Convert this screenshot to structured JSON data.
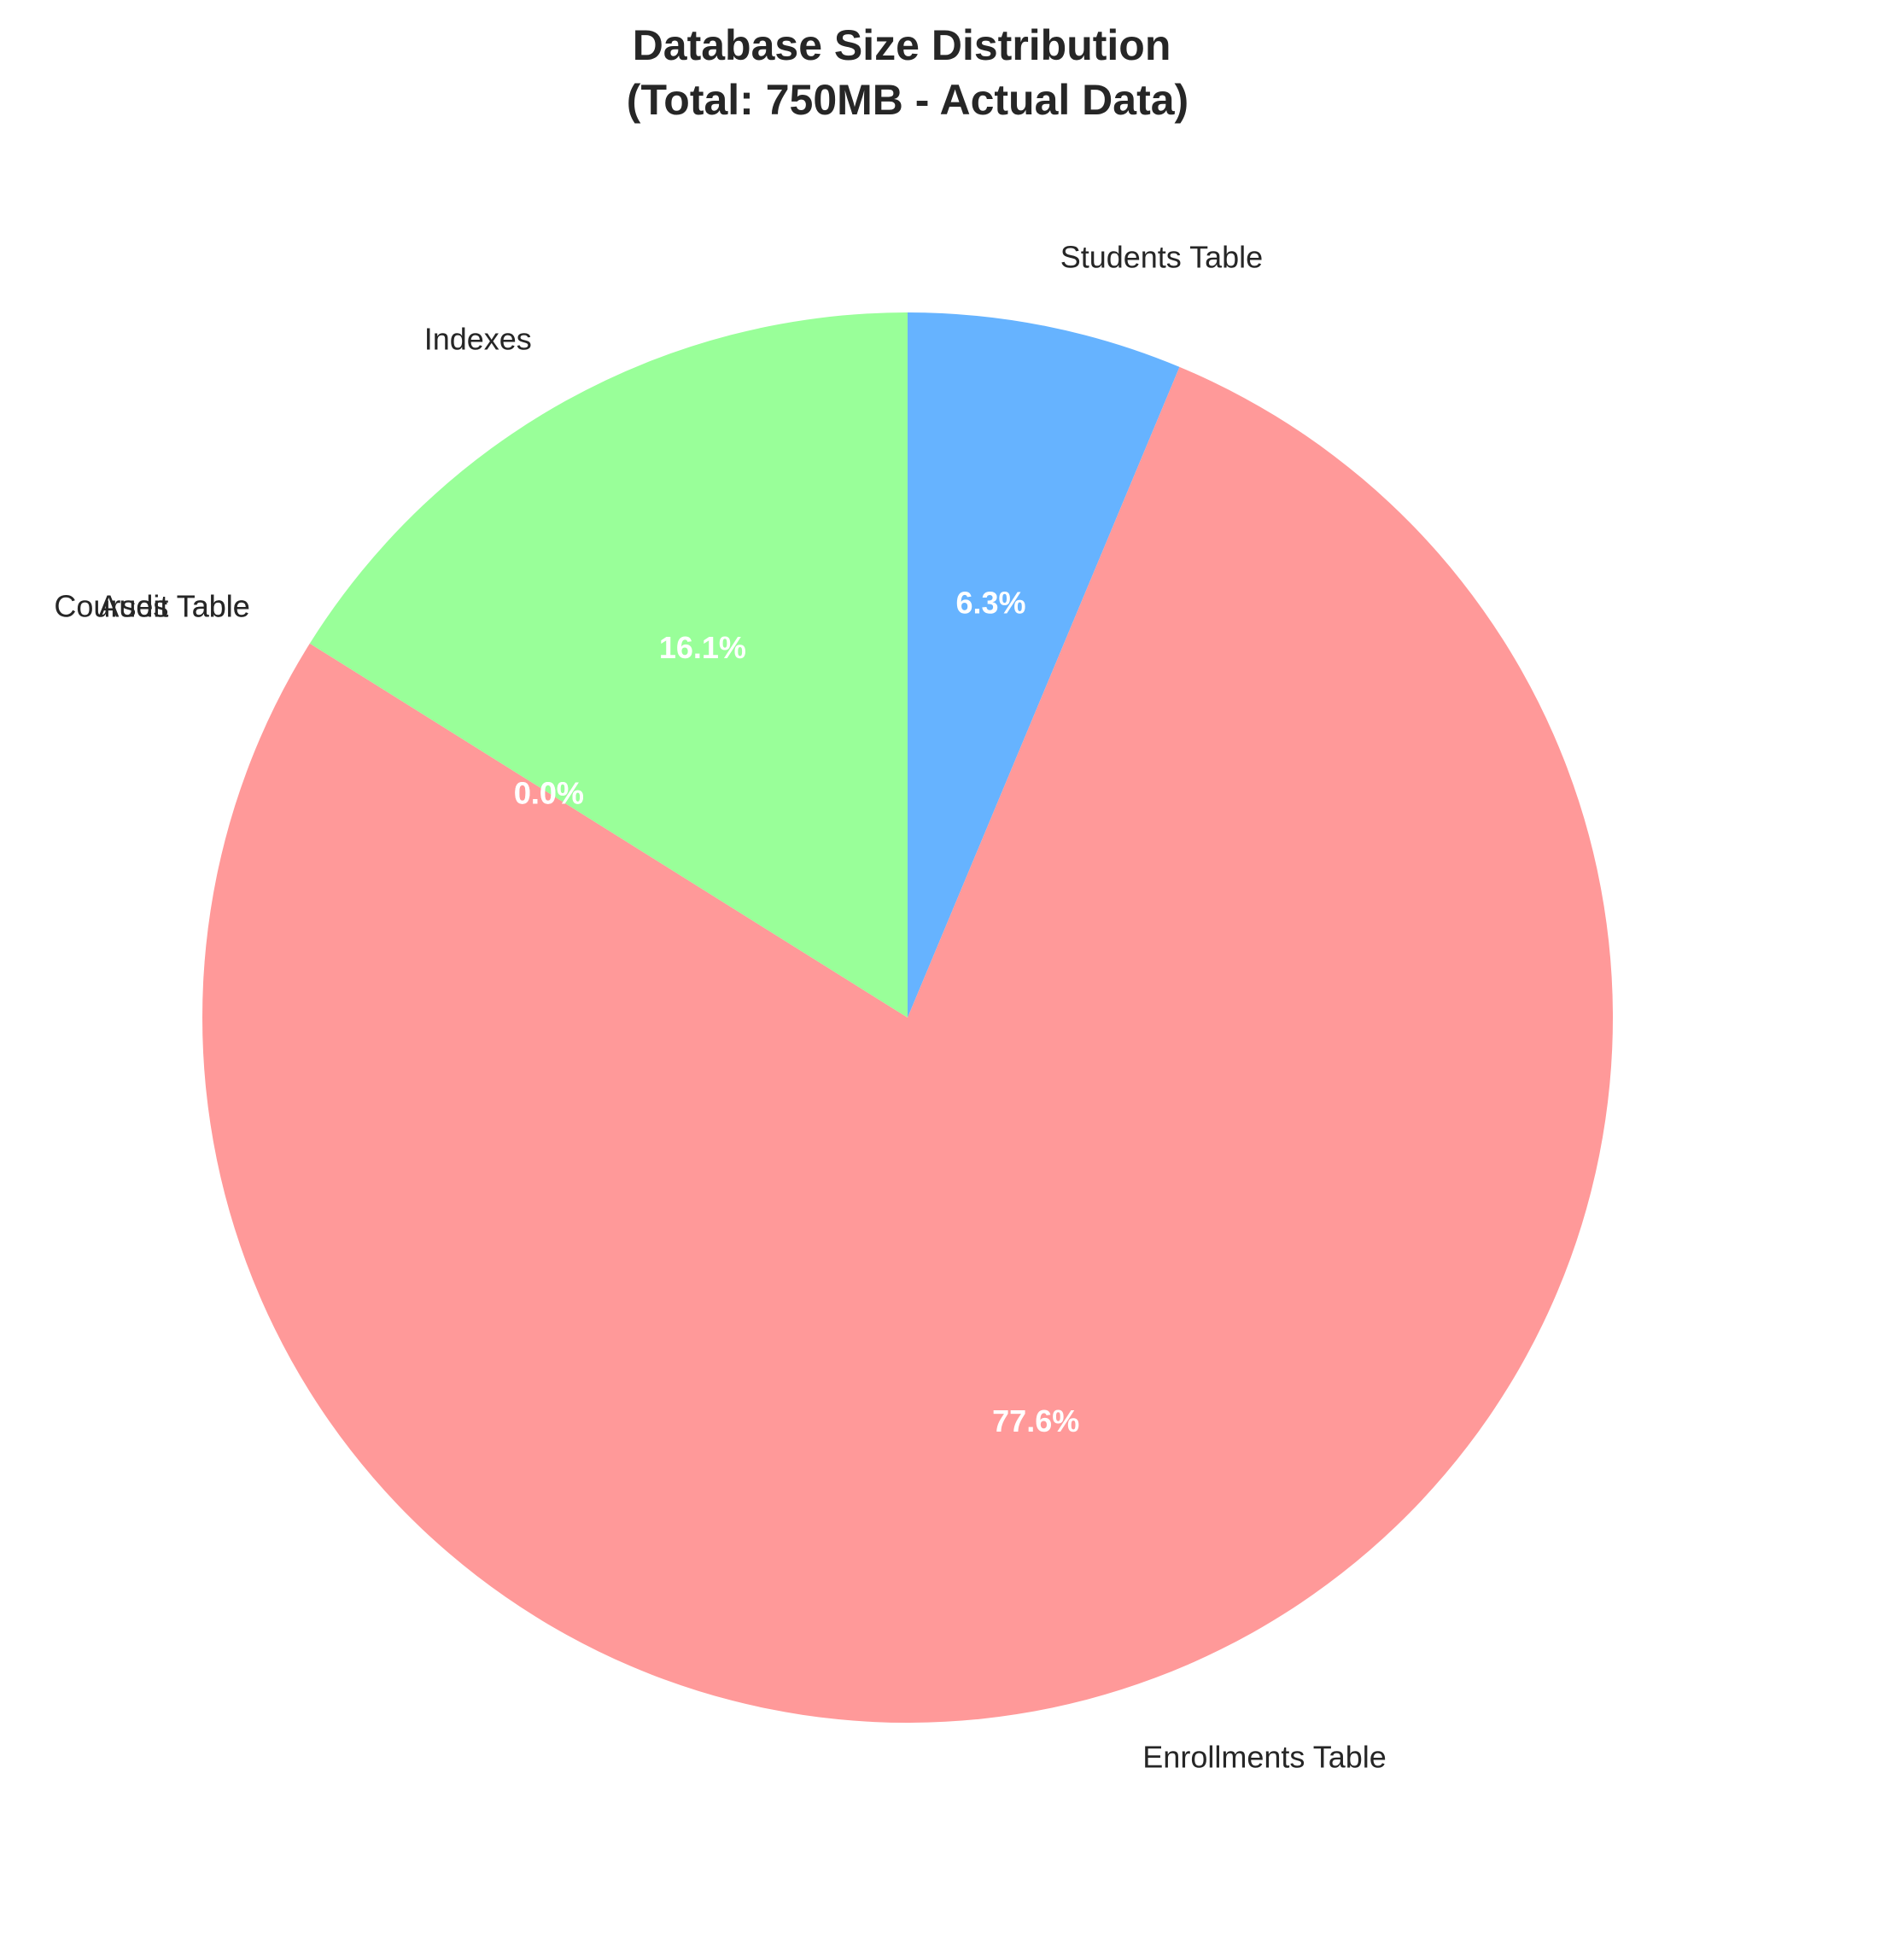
{
  "chart_data": {
    "type": "pie",
    "title_lines": [
      "Database Size Distribution",
      "(Total: 750MB - Actual Data)"
    ],
    "start_angle_deg": 90,
    "direction": "clockwise",
    "slices": [
      {
        "label": "Students Table",
        "percent": 6.3,
        "percent_label": "6.3%",
        "color": "#66b3ff"
      },
      {
        "label": "Enrollments Table",
        "percent": 77.6,
        "percent_label": "77.6%",
        "color": "#ff9999"
      },
      {
        "label": "Courses Table",
        "percent": 0.0,
        "percent_label": "0.0%",
        "color": "#ffcc99"
      },
      {
        "label": "Audit Table",
        "percent": 0.0,
        "percent_label": "0.0%",
        "color": "#c2c2f0"
      },
      {
        "label": "Indexes",
        "percent": 16.1,
        "percent_label": "16.1%",
        "color": "#99ff99"
      }
    ]
  }
}
